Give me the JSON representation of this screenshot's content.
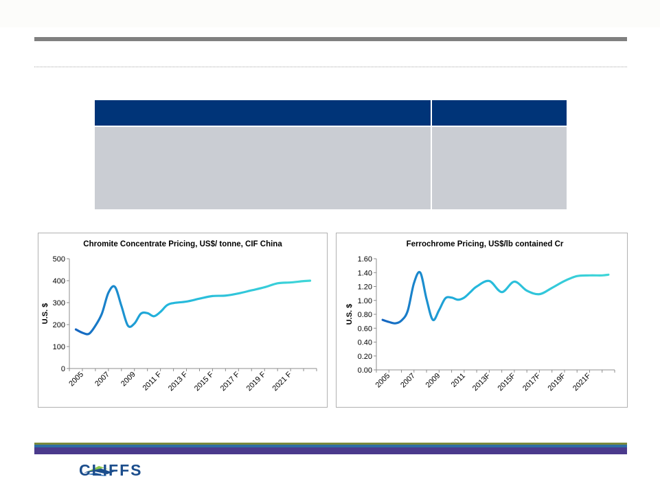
{
  "logo": {
    "text": "CLIFFS"
  },
  "colors": {
    "header_navy": "#003478",
    "table_gray": "#cacdd3",
    "rule_gray": "#808080",
    "line_dark": "#1565c0",
    "line_light": "#3fd6d8",
    "band_olive": "#7a8a3c",
    "band_blue": "#2e6da4",
    "band_purple": "#4b3a8c"
  },
  "chart_data": [
    {
      "type": "line",
      "title": "Chromite Concentrate Pricing, US$/ tonne, CIF China",
      "ylabel": "U.S. $",
      "xlabel": "",
      "ylim": [
        0,
        500
      ],
      "yticks": [
        "0",
        "100",
        "200",
        "300",
        "400",
        "500"
      ],
      "x_tick_labels": [
        "2005",
        "2007",
        "2009",
        "2011 F",
        "2013 F",
        "2015 F",
        "2017 F",
        "2019 F",
        "2021 F"
      ],
      "x": [
        2004.5,
        2005,
        2005.5,
        2006,
        2006.5,
        2007,
        2007.5,
        2008,
        2008.5,
        2009,
        2009.5,
        2010,
        2010.5,
        2011,
        2011.5,
        2012,
        2013,
        2014,
        2015,
        2016,
        2017,
        2018,
        2019,
        2020,
        2021,
        2022,
        2022.5
      ],
      "values": [
        178,
        163,
        158,
        195,
        250,
        345,
        372,
        285,
        195,
        205,
        250,
        252,
        238,
        258,
        288,
        298,
        305,
        318,
        330,
        332,
        342,
        356,
        370,
        388,
        392,
        398,
        400
      ],
      "grid": false,
      "legend": "none"
    },
    {
      "type": "line",
      "title": "Ferrochrome Pricing, US$/lb contained Cr",
      "ylabel": "U.S. $",
      "xlabel": "",
      "ylim": [
        0,
        1.6
      ],
      "yticks": [
        "0.00",
        "0.20",
        "0.40",
        "0.60",
        "0.80",
        "1.00",
        "1.20",
        "1.40",
        "1.60"
      ],
      "x_tick_labels": [
        "2005",
        "2007",
        "2009",
        "2011",
        "2013F",
        "2015F",
        "2017F",
        "2019F",
        "2021F"
      ],
      "x": [
        2004.5,
        2005,
        2005.5,
        2006,
        2006.5,
        2007,
        2007.5,
        2008,
        2008.5,
        2009,
        2009.5,
        2010,
        2010.5,
        2011,
        2011.5,
        2012,
        2013,
        2014,
        2015,
        2016,
        2017,
        2018,
        2019,
        2020,
        2021,
        2022,
        2022.5
      ],
      "values": [
        0.72,
        0.69,
        0.67,
        0.71,
        0.85,
        1.25,
        1.4,
        1.02,
        0.72,
        0.86,
        1.03,
        1.04,
        1.01,
        1.04,
        1.12,
        1.2,
        1.28,
        1.12,
        1.27,
        1.14,
        1.09,
        1.18,
        1.28,
        1.35,
        1.36,
        1.36,
        1.37
      ],
      "grid": false,
      "legend": "none"
    }
  ]
}
